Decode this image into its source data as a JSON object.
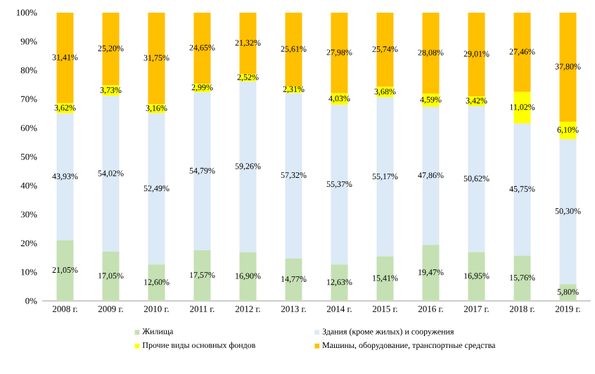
{
  "chart_data": {
    "type": "bar",
    "stacked": true,
    "categories": [
      "2008 г.",
      "2009 г.",
      "2010 г.",
      "2011 г.",
      "2012 г.",
      "2013 г.",
      "2014 г.",
      "2015 г.",
      "2016 г.",
      "2017 г.",
      "2018 г.",
      "2019 г."
    ],
    "series": [
      {
        "name": "Жилища",
        "color": "#c5e0b3",
        "values": [
          21.05,
          17.05,
          12.6,
          17.57,
          16.9,
          14.77,
          12.63,
          15.41,
          19.47,
          16.95,
          15.76,
          5.8
        ],
        "value_labels": [
          "21,05%",
          "17,05%",
          "12,60%",
          "17,57%",
          "16,90%",
          "14,77%",
          "12,63%",
          "15,41%",
          "19,47%",
          "16,95%",
          "15,76%",
          "5,80%"
        ]
      },
      {
        "name": "Здания (кроме жилых) и сооружения",
        "color": "#dce9f6",
        "values": [
          43.93,
          54.02,
          52.49,
          54.79,
          59.26,
          57.32,
          55.37,
          55.17,
          47.86,
          50.62,
          45.75,
          50.3
        ],
        "value_labels": [
          "43,93%",
          "54,02%",
          "52,49%",
          "54,79%",
          "59,26%",
          "57,32%",
          "55,37%",
          "55,17%",
          "47,86%",
          "50,62%",
          "45,75%",
          "50,30%"
        ]
      },
      {
        "name": "Прочие виды основных фондов",
        "color": "#ffff00",
        "values": [
          3.62,
          3.73,
          3.16,
          2.99,
          2.52,
          2.31,
          4.03,
          3.68,
          4.59,
          3.42,
          11.02,
          6.1
        ],
        "value_labels": [
          "3,62%",
          "3,73%",
          "3,16%",
          "2,99%",
          "2,52%",
          "2,31%",
          "4,03%",
          "3,68%",
          "4,59%",
          "3,42%",
          "11,02%",
          "6,10%"
        ]
      },
      {
        "name": "Машины, оборудование, транспортные средства",
        "color": "#ffc000",
        "values": [
          31.41,
          25.2,
          31.75,
          24.65,
          21.32,
          25.61,
          27.98,
          25.74,
          28.08,
          29.01,
          27.46,
          37.8
        ],
        "value_labels": [
          "31,41%",
          "25,20%",
          "31,75%",
          "24,65%",
          "21,32%",
          "25,61%",
          "27,98%",
          "25,74%",
          "28,08%",
          "29,01%",
          "27,46%",
          "37,80%"
        ]
      }
    ],
    "ylim": [
      0,
      100
    ],
    "yticks": [
      {
        "value": 0,
        "label": "0%"
      },
      {
        "value": 10,
        "label": "10%"
      },
      {
        "value": 20,
        "label": "20%"
      },
      {
        "value": 30,
        "label": "30%"
      },
      {
        "value": 40,
        "label": "40%"
      },
      {
        "value": 50,
        "label": "50%"
      },
      {
        "value": 60,
        "label": "60%"
      },
      {
        "value": 70,
        "label": "70%"
      },
      {
        "value": 80,
        "label": "80%"
      },
      {
        "value": 90,
        "label": "90%"
      },
      {
        "value": 100,
        "label": "100%"
      }
    ],
    "legend": "bottom"
  }
}
